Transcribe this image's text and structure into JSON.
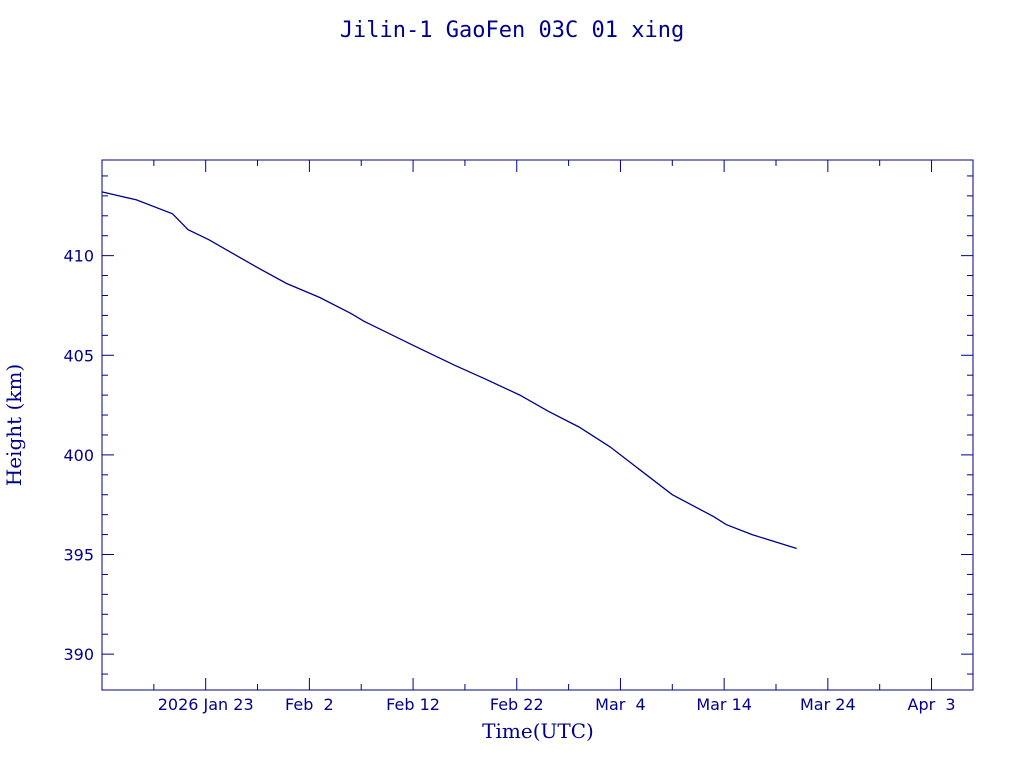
{
  "chart_data": {
    "type": "line",
    "title": "Jilin-1 GaoFen 03C 01 xing",
    "xlabel": "Time(UTC)",
    "ylabel": "Height (km)",
    "xlim": [
      "2026-01-13",
      "2026-04-07"
    ],
    "ylim": [
      388.2,
      414.8
    ],
    "x_ticks": [
      {
        "date": "2026-01-23",
        "label": "2026 Jan 23"
      },
      {
        "date": "2026-02-02",
        "label": "Feb  2"
      },
      {
        "date": "2026-02-12",
        "label": "Feb 12"
      },
      {
        "date": "2026-02-22",
        "label": "Feb 22"
      },
      {
        "date": "2026-03-04",
        "label": "Mar  4"
      },
      {
        "date": "2026-03-14",
        "label": "Mar 14"
      },
      {
        "date": "2026-03-24",
        "label": "Mar 24"
      },
      {
        "date": "2026-04-03",
        "label": "Apr  3"
      }
    ],
    "y_ticks": [
      390,
      395,
      400,
      405,
      410
    ],
    "series": [
      {
        "points": [
          [
            "2026-01-13",
            413.2
          ],
          [
            "2026-01-16.3",
            412.8
          ],
          [
            "2026-01-19.8",
            412.1
          ],
          [
            "2026-01-21.3",
            411.3
          ],
          [
            "2026-01-23.3",
            410.8
          ],
          [
            "2026-01-28",
            409.4
          ],
          [
            "2026-01-30.8",
            408.6
          ],
          [
            "2026-02-03",
            407.9
          ],
          [
            "2026-02-06",
            407.1
          ],
          [
            "2026-02-07.3",
            406.7
          ],
          [
            "2026-02-12",
            405.5
          ],
          [
            "2026-02-16",
            404.5
          ],
          [
            "2026-02-19",
            403.8
          ],
          [
            "2026-02-22.3",
            403.0
          ],
          [
            "2026-02-25",
            402.2
          ],
          [
            "2026-02-28",
            401.4
          ],
          [
            "2026-03-03",
            400.4
          ],
          [
            "2026-03-06",
            399.2
          ],
          [
            "2026-03-09",
            398.0
          ],
          [
            "2026-03-13",
            396.9
          ],
          [
            "2026-03-14.2",
            396.5
          ],
          [
            "2026-03-16.7",
            396.0
          ],
          [
            "2026-03-21",
            395.3
          ]
        ]
      }
    ]
  },
  "colors": {
    "foreground": "#00008b",
    "background": "#ffffff"
  }
}
